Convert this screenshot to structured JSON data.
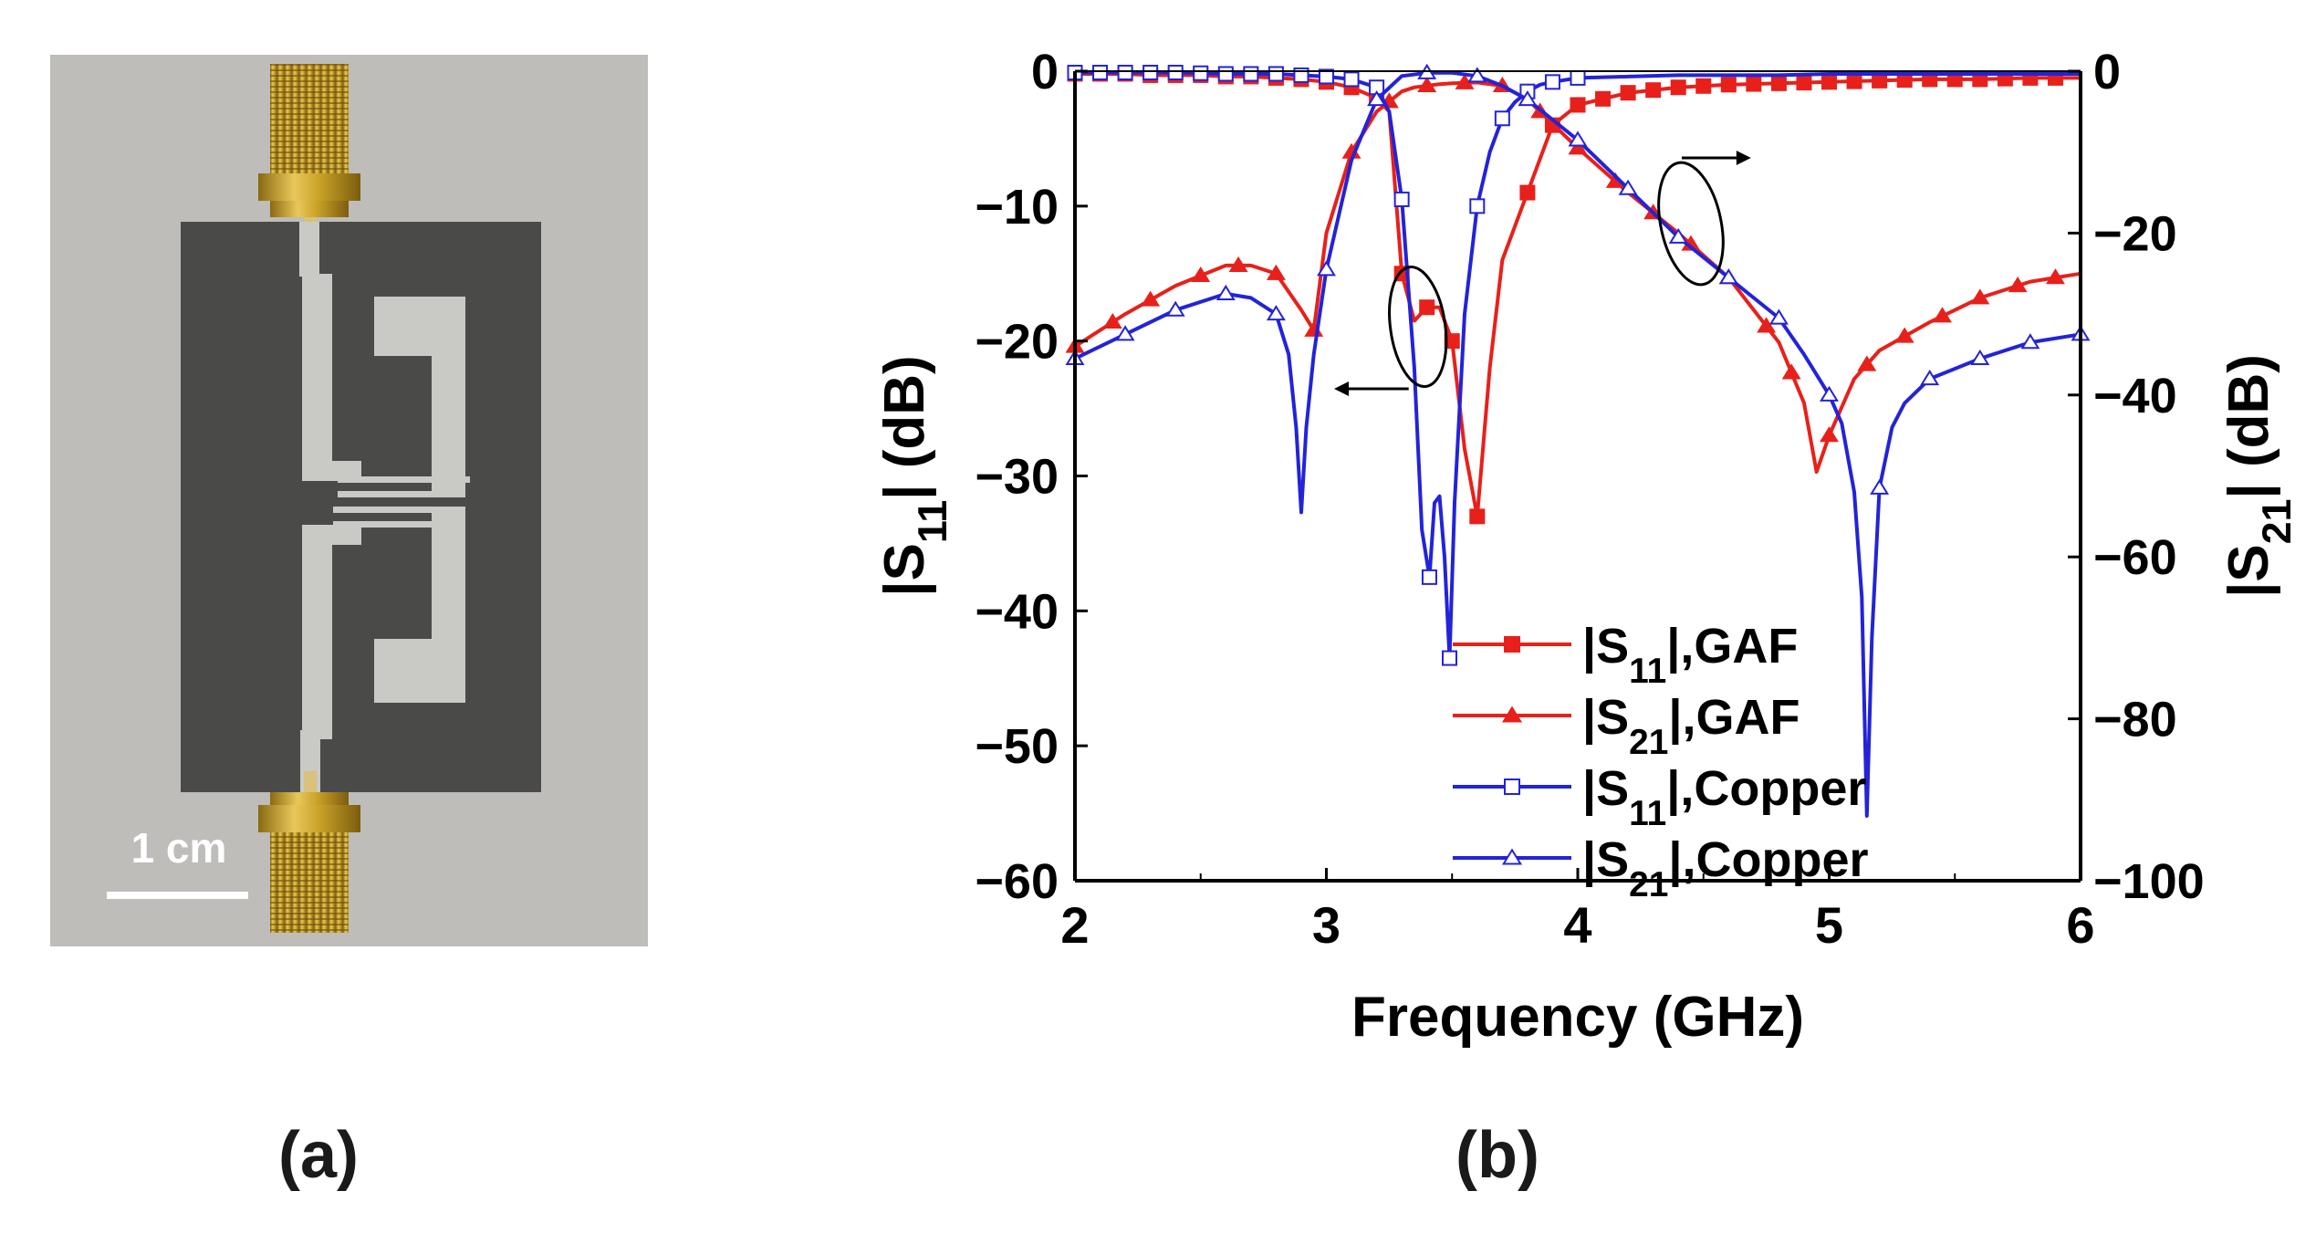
{
  "panel_a": {
    "scale_bar_label": "1 cm",
    "colors": {
      "background": "#bdbcb8",
      "substrate": "#4b4b4b",
      "trace": "#c7c7c5",
      "connector": "#c9a227"
    }
  },
  "captions": {
    "a": "(a)",
    "b": "(b)"
  },
  "chart_data": {
    "type": "line",
    "title": "",
    "xlabel": "Frequency (GHz)",
    "ylabel_left": "|S11| (dB)",
    "ylabel_right": "|S21| (dB)",
    "xlim": [
      2,
      6
    ],
    "ylim_left": [
      -60,
      0
    ],
    "ylim_right": [
      -100,
      0
    ],
    "xticks": [
      2,
      3,
      4,
      5,
      6
    ],
    "yticks_left": [
      0,
      -10,
      -20,
      -30,
      -40,
      -50,
      -60
    ],
    "yticks_right": [
      0,
      -20,
      -40,
      -60,
      -80,
      -100
    ],
    "legend_position": "bottom-center",
    "annotations": [
      {
        "type": "ellipse-arrow",
        "points_to": "left axis",
        "near_x": 3.4
      },
      {
        "type": "ellipse-arrow",
        "points_to": "right axis",
        "near_x": 4.45
      }
    ],
    "series": [
      {
        "name": "|S11|,GAF",
        "axis": "left",
        "color": "#e8201b",
        "marker": "square",
        "filled": true,
        "x": [
          2.0,
          2.1,
          2.2,
          2.3,
          2.4,
          2.5,
          2.6,
          2.7,
          2.8,
          2.9,
          3.0,
          3.1,
          3.2,
          3.25,
          3.3,
          3.35,
          3.4,
          3.45,
          3.5,
          3.55,
          3.6,
          3.65,
          3.7,
          3.8,
          3.9,
          4.0,
          4.2,
          4.4,
          4.6,
          4.8,
          5.0,
          5.2,
          5.4,
          5.6,
          5.8,
          6.0
        ],
        "y": [
          -0.2,
          -0.2,
          -0.2,
          -0.3,
          -0.3,
          -0.3,
          -0.4,
          -0.4,
          -0.5,
          -0.6,
          -0.8,
          -1.2,
          -2.0,
          -3.0,
          -15.0,
          -18.5,
          -17.5,
          -17.5,
          -20.0,
          -28.0,
          -33.0,
          -22.0,
          -14.0,
          -9.0,
          -4.0,
          -2.5,
          -1.6,
          -1.2,
          -1.0,
          -0.9,
          -0.8,
          -0.7,
          -0.6,
          -0.6,
          -0.5,
          -0.5
        ],
        "marker_x": [
          2.0,
          2.1,
          2.2,
          2.3,
          2.4,
          2.5,
          2.6,
          2.7,
          2.8,
          2.9,
          3.0,
          3.1,
          3.2,
          3.3,
          3.4,
          3.5,
          3.6,
          3.8,
          3.9,
          4.0,
          4.1,
          4.2,
          4.3,
          4.4,
          4.5,
          4.6,
          4.7,
          4.8,
          4.9,
          5.0,
          5.1,
          5.2,
          5.3,
          5.4,
          5.5,
          5.6,
          5.7,
          5.8,
          5.9
        ]
      },
      {
        "name": "|S21|,GAF",
        "axis": "right",
        "color": "#e8201b",
        "marker": "triangle",
        "filled": true,
        "x": [
          2.0,
          2.2,
          2.4,
          2.6,
          2.7,
          2.8,
          2.9,
          2.95,
          3.0,
          3.1,
          3.2,
          3.3,
          3.35,
          3.4,
          3.45,
          3.5,
          3.6,
          3.7,
          3.8,
          3.9,
          4.0,
          4.2,
          4.4,
          4.6,
          4.8,
          4.9,
          4.95,
          5.0,
          5.1,
          5.2,
          5.4,
          5.6,
          5.8,
          6.0
        ],
        "y": [
          -34,
          -30,
          -26.5,
          -24,
          -24,
          -25,
          -29.5,
          -32,
          -20,
          -10,
          -5,
          -2.5,
          -2,
          -1.8,
          -1.6,
          -1.5,
          -1.4,
          -1.8,
          -3.5,
          -6.5,
          -9.5,
          -15,
          -20,
          -25.5,
          -33.5,
          -41,
          -49.5,
          -45,
          -38,
          -34.5,
          -31,
          -28,
          -26,
          -25
        ],
        "marker_x": [
          2.0,
          2.15,
          2.3,
          2.5,
          2.65,
          2.8,
          2.95,
          3.1,
          3.25,
          3.4,
          3.55,
          3.7,
          3.85,
          4.0,
          4.15,
          4.3,
          4.45,
          4.6,
          4.75,
          4.85,
          5.0,
          5.15,
          5.3,
          5.45,
          5.6,
          5.75,
          5.9
        ]
      },
      {
        "name": "|S11|,Copper",
        "axis": "left",
        "color": "#2323d9",
        "marker": "square",
        "filled": false,
        "x": [
          2.0,
          2.2,
          2.4,
          2.6,
          2.8,
          3.0,
          3.1,
          3.2,
          3.25,
          3.3,
          3.35,
          3.38,
          3.41,
          3.43,
          3.45,
          3.47,
          3.49,
          3.51,
          3.55,
          3.6,
          3.65,
          3.7,
          3.75,
          3.8,
          3.85,
          3.9,
          4.0,
          4.2,
          4.4,
          4.6,
          4.8,
          5.0,
          5.2,
          5.4,
          5.6,
          5.8,
          6.0
        ],
        "y": [
          -0.1,
          -0.1,
          -0.1,
          -0.2,
          -0.2,
          -0.4,
          -0.6,
          -1.2,
          -3.0,
          -9.5,
          -22.0,
          -34.0,
          -37.5,
          -32.0,
          -31.5,
          -36.0,
          -43.5,
          -32.0,
          -18.0,
          -10.0,
          -6.0,
          -3.5,
          -2.3,
          -1.5,
          -1.0,
          -0.8,
          -0.5,
          -0.4,
          -0.3,
          -0.3,
          -0.3,
          -0.2,
          -0.2,
          -0.2,
          -0.2,
          -0.2,
          -0.2
        ],
        "marker_x": [
          2.0,
          2.1,
          2.2,
          2.3,
          2.4,
          2.5,
          2.6,
          2.7,
          2.8,
          2.9,
          3.0,
          3.1,
          3.2,
          3.3,
          3.41,
          3.49,
          3.6,
          3.7,
          3.8,
          3.9,
          4.0
        ]
      },
      {
        "name": "|S21|,Copper",
        "axis": "right",
        "color": "#2323d9",
        "marker": "triangle",
        "filled": false,
        "x": [
          2.0,
          2.2,
          2.4,
          2.6,
          2.7,
          2.8,
          2.85,
          2.88,
          2.9,
          2.92,
          2.95,
          3.0,
          3.1,
          3.2,
          3.3,
          3.4,
          3.5,
          3.6,
          3.7,
          3.8,
          3.9,
          4.0,
          4.2,
          4.4,
          4.6,
          4.8,
          4.9,
          5.0,
          5.05,
          5.1,
          5.13,
          5.15,
          5.17,
          5.2,
          5.25,
          5.3,
          5.4,
          5.6,
          5.8,
          6.0
        ],
        "y": [
          -35.5,
          -32.5,
          -29.5,
          -27.5,
          -28.0,
          -30.0,
          -35.0,
          -44.0,
          -54.5,
          -44.0,
          -35.0,
          -24.5,
          -11.0,
          -3.5,
          -0.6,
          -0.2,
          -0.2,
          -0.6,
          -1.8,
          -3.5,
          -6.0,
          -8.5,
          -14.5,
          -20.5,
          -25.5,
          -30.5,
          -35.0,
          -40.0,
          -43.5,
          -52.0,
          -65.0,
          -92.0,
          -70.0,
          -51.5,
          -44.0,
          -41.0,
          -38.0,
          -35.5,
          -33.5,
          -32.5
        ],
        "marker_x": [
          2.0,
          2.2,
          2.4,
          2.6,
          2.8,
          3.0,
          3.2,
          3.4,
          3.6,
          3.8,
          4.0,
          4.2,
          4.4,
          4.6,
          4.8,
          5.0,
          5.2,
          5.4,
          5.6,
          5.8,
          6.0
        ]
      }
    ]
  }
}
